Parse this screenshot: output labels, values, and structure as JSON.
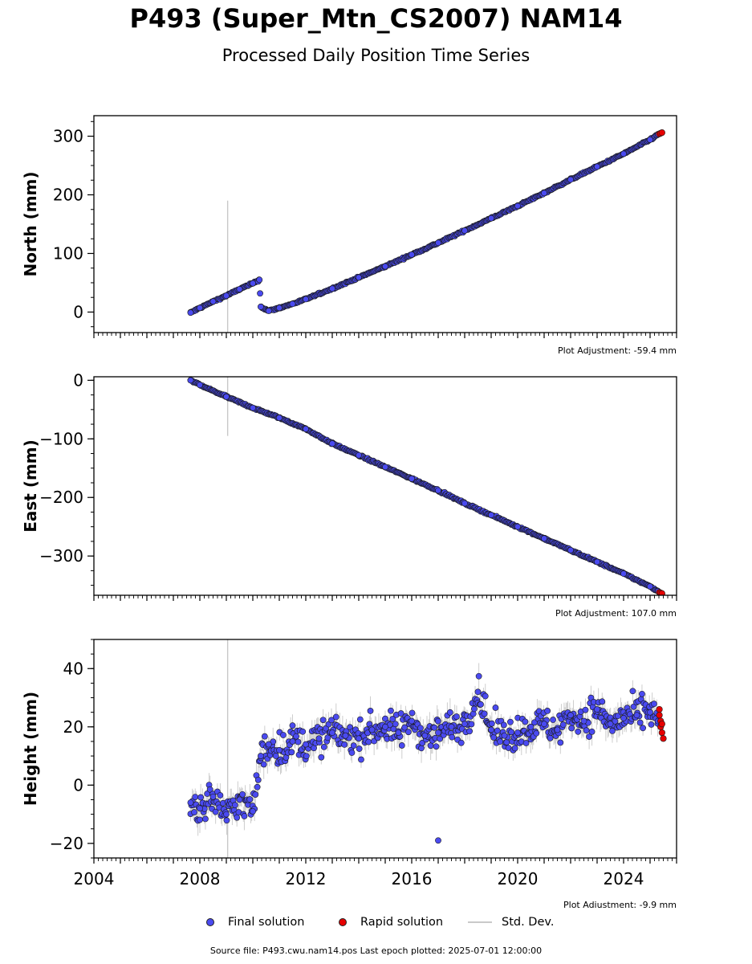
{
  "title": "P493 (Super_Mtn_CS2007) NAM14",
  "subtitle": "Processed Daily Position Time Series",
  "legend": {
    "final_label": "Final solution",
    "rapid_label": "Rapid solution",
    "std_label": "Std. Dev."
  },
  "footer": "Source file: P493.cwu.nam14.pos  Last epoch plotted: 2025-07-01 12:00:00",
  "colors": {
    "final": "#4a4af0",
    "rapid": "#e60000",
    "std": "#c8c8c8",
    "marker_edge": "#1a1a1a"
  },
  "chart_data": [
    {
      "type": "scatter",
      "ylabel": "North (mm)",
      "adjustment_label": "Plot Adjustment: -59.4 mm",
      "xlim": [
        2004.0,
        2026.0
      ],
      "ylim": [
        -35,
        335
      ],
      "yticks": [
        0,
        100,
        200,
        300
      ],
      "yticklabels": [
        "0",
        "100",
        "200",
        "300"
      ],
      "std_scale": 2.0,
      "series": [
        {
          "name": "Final solution",
          "x": [
            2007.65,
            2008.0,
            2008.5,
            2009.0,
            2009.5,
            2010.0,
            2010.25,
            2010.3,
            2010.6,
            2011.0,
            2011.5,
            2012.0,
            2013.0,
            2014.0,
            2015.0,
            2016.0,
            2017.0,
            2018.0,
            2019.0,
            2020.0,
            2021.0,
            2022.0,
            2023.0,
            2024.0,
            2025.0,
            2025.3
          ],
          "y": [
            -1,
            7,
            18,
            28,
            39,
            49,
            55,
            9,
            2,
            7,
            14,
            22,
            40,
            59,
            78,
            98,
            118,
            139,
            160,
            181,
            203,
            226,
            248,
            270,
            294,
            303
          ]
        },
        {
          "name": "Rapid solution",
          "x": [
            2025.35,
            2025.4,
            2025.45
          ],
          "y": [
            304,
            305,
            306
          ]
        }
      ],
      "outliers": [
        {
          "x": 2009.05,
          "y": 40,
          "std": 150
        }
      ]
    },
    {
      "type": "scatter",
      "ylabel": "East (mm)",
      "adjustment_label": "Plot Adjustment: 107.0 mm",
      "xlim": [
        2004.0,
        2026.0
      ],
      "ylim": [
        -367,
        6
      ],
      "yticks": [
        0,
        -100,
        -200,
        -300
      ],
      "yticklabels": [
        "0",
        "−100",
        "−200",
        "−300"
      ],
      "std_scale": 2.0,
      "series": [
        {
          "name": "Final solution",
          "x": [
            2007.65,
            2008.0,
            2009.0,
            2010.0,
            2011.0,
            2012.0,
            2013.0,
            2014.0,
            2015.0,
            2016.0,
            2017.0,
            2018.0,
            2019.0,
            2020.0,
            2021.0,
            2022.0,
            2023.0,
            2024.0,
            2025.0,
            2025.3
          ],
          "y": [
            0,
            -8,
            -28,
            -47,
            -64,
            -83,
            -108,
            -128,
            -148,
            -168,
            -188,
            -210,
            -230,
            -250,
            -270,
            -290,
            -310,
            -330,
            -352,
            -360
          ]
        },
        {
          "name": "Rapid solution",
          "x": [
            2025.35,
            2025.4,
            2025.45
          ],
          "y": [
            -362,
            -363,
            -364
          ]
        }
      ],
      "outliers": [
        {
          "x": 2009.05,
          "y": -40,
          "std": 55
        }
      ]
    },
    {
      "type": "scatter",
      "ylabel": "Height (mm)",
      "adjustment_label": "Plot Adjustment: -9.9 mm",
      "xlim": [
        2004.0,
        2026.0
      ],
      "ylim": [
        -25,
        50
      ],
      "yticks": [
        -20,
        0,
        20,
        40
      ],
      "yticklabels": [
        "−20",
        "0",
        "20",
        "40"
      ],
      "xticks": [
        2004,
        2008,
        2012,
        2016,
        2020,
        2024
      ],
      "xticklabels": [
        "2004",
        "2008",
        "2012",
        "2016",
        "2020",
        "2024"
      ],
      "std_scale": 1.0,
      "series": [
        {
          "name": "Final solution",
          "x": [
            2007.65,
            2008.0,
            2008.5,
            2009.0,
            2009.5,
            2010.0,
            2010.3,
            2010.6,
            2011.0,
            2011.5,
            2012.0,
            2012.5,
            2013.0,
            2013.5,
            2014.0,
            2014.5,
            2015.0,
            2015.5,
            2016.0,
            2016.5,
            2017.0,
            2017.5,
            2018.0,
            2018.5,
            2019.0,
            2019.5,
            2020.0,
            2020.5,
            2021.0,
            2021.5,
            2022.0,
            2022.5,
            2023.0,
            2023.5,
            2024.0,
            2024.5,
            2025.0,
            2025.3
          ],
          "y": [
            -6,
            -8,
            -4,
            -10,
            -5,
            -9,
            10,
            14,
            12,
            15,
            14,
            16,
            18,
            17,
            16,
            19,
            20,
            18,
            22,
            17,
            18,
            20,
            21,
            32,
            19,
            17,
            18,
            20,
            21,
            19,
            24,
            22,
            26,
            21,
            23,
            24,
            25,
            22
          ]
        },
        {
          "name": "Rapid solution",
          "x": [
            2025.35,
            2025.35,
            2025.4,
            2025.4,
            2025.45,
            2025.45,
            2025.5
          ],
          "y": [
            26,
            24,
            22,
            20,
            21,
            18,
            16
          ]
        }
      ],
      "outliers": [
        {
          "x": 2009.05,
          "y": -8,
          "std": 60
        },
        {
          "x": 2017.0,
          "y": -19,
          "std": 0
        }
      ]
    }
  ]
}
